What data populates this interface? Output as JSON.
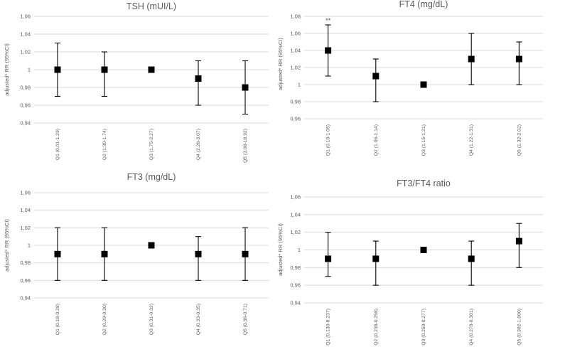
{
  "chart_data": [
    {
      "type": "scatter",
      "title": "TSH (mUI/L)",
      "ylabel": "adjusted* RR (95%CI)",
      "ylim": [
        0.94,
        1.06
      ],
      "yticks": [
        "0,94",
        "0,96",
        "0,98",
        "1",
        "1,02",
        "1,04",
        "1,06"
      ],
      "categories": [
        "Q1 (0.01-1.29)",
        "Q2 (1.30-1.74)",
        "Q3 (1.75-2.27)",
        "Q4 (2.28-3.07)",
        "Q5 (3.08-18.92)"
      ],
      "values": [
        1.0,
        1.0,
        1.0,
        0.99,
        0.98
      ],
      "lower": [
        0.97,
        0.97,
        null,
        0.96,
        0.95
      ],
      "upper": [
        1.03,
        1.02,
        null,
        1.01,
        1.01
      ],
      "annotations": [],
      "grid": true
    },
    {
      "type": "scatter",
      "title": "FT4 (mg/dL)",
      "ylabel": "adjusted* RR (95%CI)",
      "ylim": [
        0.96,
        1.08
      ],
      "yticks": [
        "0,96",
        "0,98",
        "1",
        "1,02",
        "1,04",
        "1,06",
        "1,08"
      ],
      "categories": [
        "Q1 (0.18-1.05)",
        "Q2 (1.06-1.14)",
        "Q3 (1.15-1.21)",
        "Q4 (1.22-1.31)",
        "Q5 (1.32-2.02)"
      ],
      "values": [
        1.04,
        1.01,
        1.0,
        1.03,
        1.03
      ],
      "lower": [
        1.01,
        0.98,
        null,
        1.0,
        1.0
      ],
      "upper": [
        1.07,
        1.03,
        null,
        1.06,
        1.05
      ],
      "annotations": [
        {
          "index": 0,
          "text": "**"
        }
      ],
      "grid": true
    },
    {
      "type": "scatter",
      "title": "FT3 (mg/dL)",
      "ylabel": "adjusted* RR (95%CI)",
      "ylim": [
        0.94,
        1.06
      ],
      "yticks": [
        "0,94",
        "0,96",
        "0,98",
        "1",
        "1,02",
        "1,04",
        "1,06"
      ],
      "categories": [
        "Q1 (0.18-0.28)",
        "Q2 (0.29-0.30)",
        "Q3 (0.31-0.32)",
        "Q4 (0.33-0.35)",
        "Q5 (0.36-0.71)"
      ],
      "values": [
        0.99,
        0.99,
        1.0,
        0.99,
        0.99
      ],
      "lower": [
        0.96,
        0.96,
        null,
        0.96,
        0.96
      ],
      "upper": [
        1.02,
        1.02,
        null,
        1.01,
        1.02
      ],
      "annotations": [],
      "grid": true
    },
    {
      "type": "scatter",
      "title": "FT3/FT4 ratio",
      "ylabel": "adjusted* RR (95%CI)",
      "ylim": [
        0.94,
        1.06
      ],
      "yticks": [
        "0,94",
        "0,96",
        "0,98",
        "1",
        "1,02",
        "1,04",
        "1,06"
      ],
      "categories": [
        "Q1 (0.130-0.237)",
        "Q2 (0.238-0.258)",
        "Q3 (0.259-0.277)",
        "Q4 (0.278-0.301)",
        "Q5 (0.302-1.000)"
      ],
      "values": [
        0.99,
        0.99,
        1.0,
        0.99,
        1.01
      ],
      "lower": [
        0.97,
        0.96,
        null,
        0.96,
        0.98
      ],
      "upper": [
        1.02,
        1.01,
        null,
        1.01,
        1.03
      ],
      "annotations": [],
      "grid": true
    }
  ]
}
